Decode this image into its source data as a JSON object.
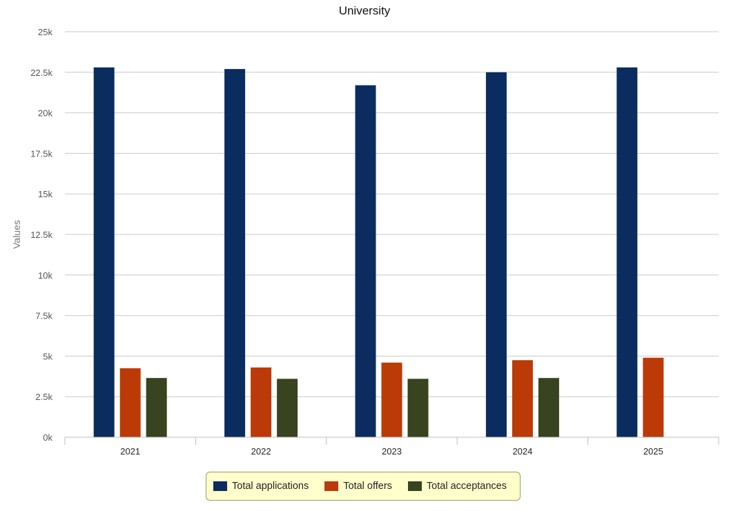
{
  "chart_data": {
    "type": "bar",
    "title": "University",
    "xlabel": "",
    "ylabel": "Values",
    "categories": [
      "2021",
      "2022",
      "2023",
      "2024",
      "2025"
    ],
    "ylim": [
      0,
      25000
    ],
    "yticks": [
      0,
      2500,
      5000,
      7500,
      10000,
      12500,
      15000,
      17500,
      20000,
      22500,
      25000
    ],
    "ytick_labels": [
      "0k",
      "2.5k",
      "5k",
      "7.5k",
      "10k",
      "12.5k",
      "15k",
      "17.5k",
      "20k",
      "22.5k",
      "25k"
    ],
    "grid": true,
    "legend_position": "bottom",
    "series": [
      {
        "name": "Total applications",
        "color": "#0b2c5e",
        "values": [
          22800,
          22700,
          21700,
          22500,
          22800
        ]
      },
      {
        "name": "Total offers",
        "color": "#bb3a07",
        "values": [
          4250,
          4300,
          4600,
          4750,
          4900
        ]
      },
      {
        "name": "Total acceptances",
        "color": "#38431f",
        "values": [
          3650,
          3600,
          3600,
          3650,
          null
        ]
      }
    ]
  }
}
